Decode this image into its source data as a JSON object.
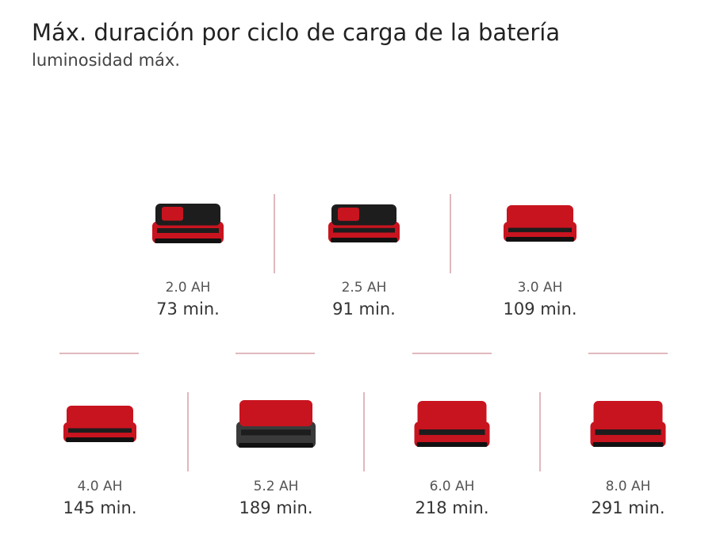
{
  "title": "Máx. duración por ciclo de carga de la batería",
  "subtitle": "luminosidad máx.",
  "items": [
    {
      "capacity": "2.0 AH",
      "runtime": "73 min."
    },
    {
      "capacity": "2.5 AH",
      "runtime": "91 min."
    },
    {
      "capacity": "3.0 AH",
      "runtime": "109 min."
    },
    {
      "capacity": "4.0 AH",
      "runtime": "145 min."
    },
    {
      "capacity": "5.2 AH",
      "runtime": "189 min."
    },
    {
      "capacity": "6.0 AH",
      "runtime": "218 min."
    },
    {
      "capacity": "8.0 AH",
      "runtime": "291 min."
    }
  ]
}
